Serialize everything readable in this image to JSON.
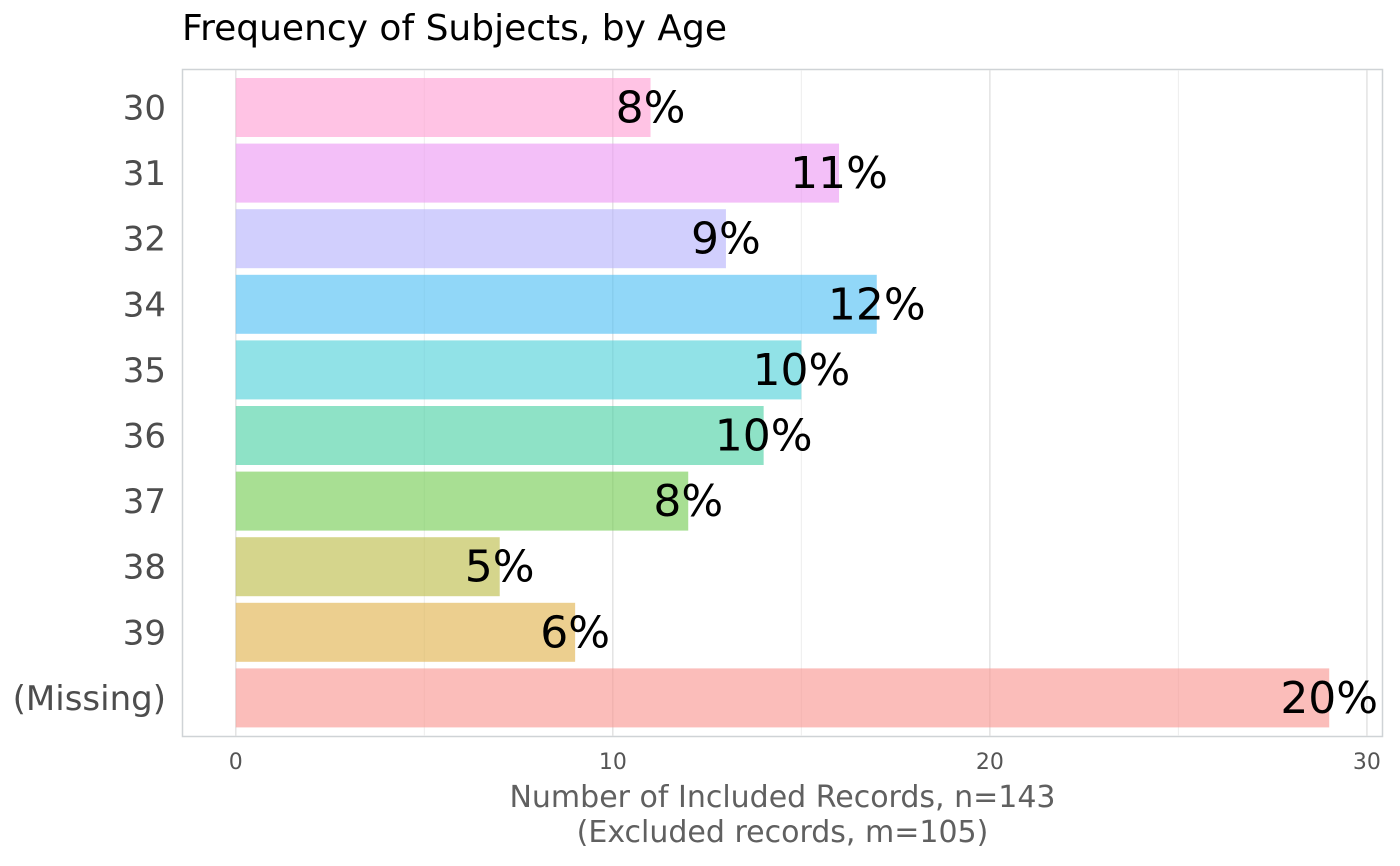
{
  "chart_data": {
    "type": "bar",
    "orientation": "horizontal",
    "title": "Frequency of Subjects, by Age",
    "xlabel_line1": "Number of Included Records, n=143",
    "xlabel_line2": "(Excluded records, m=105)",
    "ylabel": "",
    "xlim": [
      -1.4,
      30.4
    ],
    "xticks": [
      0,
      10,
      20,
      30
    ],
    "grid": true,
    "categories": [
      "30",
      "31",
      "32",
      "34",
      "35",
      "36",
      "37",
      "38",
      "39",
      "(Missing)"
    ],
    "values": [
      11,
      16,
      13,
      17,
      15,
      14,
      12,
      7,
      9,
      29
    ],
    "labels": [
      "8%",
      "11%",
      "9%",
      "12%",
      "10%",
      "10%",
      "8%",
      "5%",
      "6%",
      "20%"
    ],
    "colors": [
      "#FF9ED4",
      "#EC97F4",
      "#B5B1FC",
      "#4DBFF3",
      "#4ED1D9",
      "#48D1A3",
      "#73CC50",
      "#BBBB46",
      "#E0B24A",
      "#F8958F"
    ]
  }
}
